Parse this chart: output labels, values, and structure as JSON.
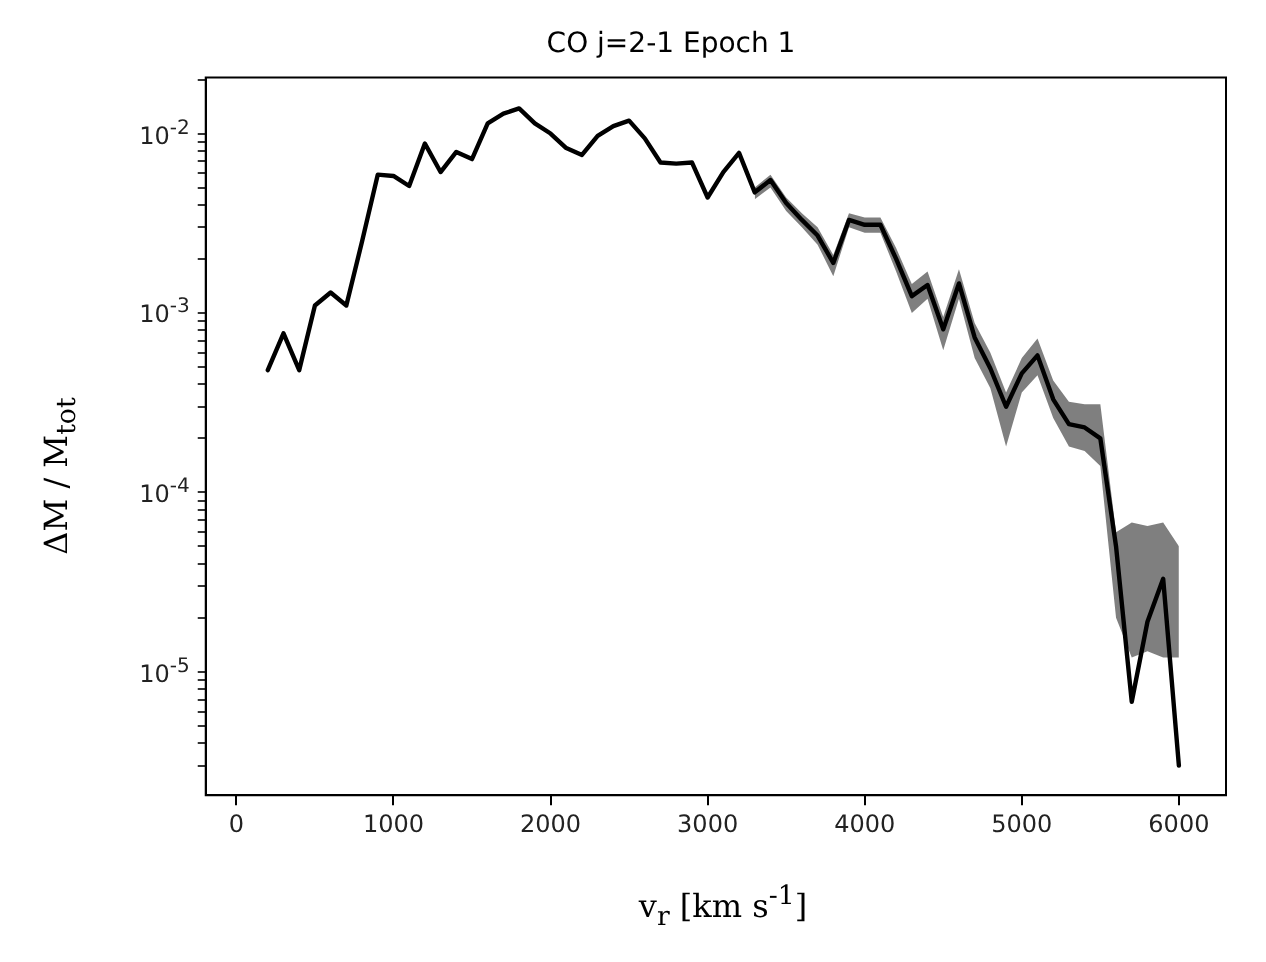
{
  "chart_data": {
    "type": "line",
    "title": "CO j=2-1 Epoch 1",
    "xlabel": "v$_{r}$ [km s$^{-1}$]",
    "ylabel": "ΔM / M$_{tot}$",
    "x": [
      200,
      300,
      400,
      500,
      600,
      700,
      800,
      900,
      1000,
      1100,
      1200,
      1300,
      1400,
      1500,
      1600,
      1700,
      1800,
      1900,
      2000,
      2100,
      2200,
      2300,
      2400,
      2500,
      2600,
      2700,
      2800,
      2900,
      3000,
      3100,
      3200,
      3300,
      3400,
      3500,
      3600,
      3700,
      3800,
      3900,
      4000,
      4100,
      4200,
      4300,
      4400,
      4500,
      4600,
      4700,
      4800,
      4900,
      5000,
      5100,
      5200,
      5300,
      5400,
      5500,
      5600,
      5700,
      5800,
      5900,
      6000
    ],
    "series": [
      {
        "color": "#000000",
        "values": [
          0.00048,
          0.00077,
          0.00048,
          0.0011,
          0.0013,
          0.0011,
          0.0025,
          0.0059,
          0.0058,
          0.0051,
          0.0088,
          0.0061,
          0.0079,
          0.0072,
          0.0114,
          0.0129,
          0.0138,
          0.0114,
          0.01,
          0.0083,
          0.0076,
          0.0097,
          0.011,
          0.0118,
          0.0094,
          0.0069,
          0.0068,
          0.0069,
          0.0044,
          0.0061,
          0.0078,
          0.0047,
          0.0055,
          0.0041,
          0.0033,
          0.0027,
          0.0019,
          0.0033,
          0.0031,
          0.0031,
          0.002,
          0.00124,
          0.00143,
          0.00081,
          0.00146,
          0.00073,
          0.00049,
          0.0003,
          0.00046,
          0.00058,
          0.00033,
          0.00024,
          0.00023,
          0.0002,
          5e-05,
          6.8e-06,
          1.9e-05,
          3.3e-05,
          3e-06
        ],
        "lower": [
          null,
          null,
          null,
          null,
          null,
          null,
          null,
          null,
          null,
          null,
          null,
          null,
          null,
          null,
          null,
          null,
          null,
          null,
          null,
          null,
          null,
          null,
          null,
          null,
          null,
          null,
          null,
          null,
          null,
          null,
          null,
          0.0043,
          0.005,
          0.0037,
          0.003,
          0.0024,
          0.0016,
          0.003,
          0.0028,
          0.0028,
          0.0017,
          0.001,
          0.0012,
          0.00062,
          0.0012,
          0.00056,
          0.00038,
          0.00018,
          0.00036,
          0.00045,
          0.00026,
          0.00018,
          0.00017,
          0.00014,
          2e-05,
          1.2e-05,
          1.3e-05,
          1.2e-05,
          1.2e-05
        ],
        "upper": [
          null,
          null,
          null,
          null,
          null,
          null,
          null,
          null,
          null,
          null,
          null,
          null,
          null,
          null,
          null,
          null,
          null,
          null,
          null,
          null,
          null,
          null,
          null,
          null,
          null,
          null,
          null,
          null,
          null,
          null,
          null,
          0.005,
          0.0059,
          0.0044,
          0.0036,
          0.003,
          0.0021,
          0.0036,
          0.0034,
          0.0034,
          0.0023,
          0.00145,
          0.0017,
          0.00095,
          0.00175,
          0.00088,
          0.0006,
          0.00036,
          0.00056,
          0.00072,
          0.00042,
          0.00032,
          0.00031,
          0.00031,
          6e-05,
          6.8e-05,
          6.5e-05,
          6.8e-05,
          5e-05
        ]
      }
    ],
    "xlim": [
      -195,
      6300
    ],
    "xticks": [
      0,
      1000,
      2000,
      3000,
      4000,
      5000,
      6000
    ],
    "ylim": [
      2.05e-06,
      0.0205
    ],
    "log": "y",
    "yticks": [
      {
        "value": 3e-06,
        "label": null
      },
      {
        "value": 4e-06,
        "label": null
      },
      {
        "value": 5e-06,
        "label": null
      },
      {
        "value": 6e-06,
        "label": null
      },
      {
        "value": 7e-06,
        "label": null
      },
      {
        "value": 8e-06,
        "label": null
      },
      {
        "value": 9e-06,
        "label": null
      },
      {
        "value": 1e-05,
        "label": "10$^{-5}$"
      },
      {
        "value": 2e-05,
        "label": null
      },
      {
        "value": 3e-05,
        "label": null
      },
      {
        "value": 4e-05,
        "label": null
      },
      {
        "value": 5e-05,
        "label": null
      },
      {
        "value": 6e-05,
        "label": null
      },
      {
        "value": 7e-05,
        "label": null
      },
      {
        "value": 8e-05,
        "label": null
      },
      {
        "value": 9e-05,
        "label": null
      },
      {
        "value": 0.0001,
        "label": "10$^{-4}$"
      },
      {
        "value": 0.0002,
        "label": null
      },
      {
        "value": 0.0003,
        "label": null
      },
      {
        "value": 0.0004,
        "label": null
      },
      {
        "value": 0.0005,
        "label": null
      },
      {
        "value": 0.0006,
        "label": null
      },
      {
        "value": 0.0007,
        "label": null
      },
      {
        "value": 0.0008,
        "label": null
      },
      {
        "value": 0.0009,
        "label": null
      },
      {
        "value": 0.001,
        "label": "10$^{-3}$"
      },
      {
        "value": 0.002,
        "label": null
      },
      {
        "value": 0.003,
        "label": null
      },
      {
        "value": 0.004,
        "label": null
      },
      {
        "value": 0.005,
        "label": null
      },
      {
        "value": 0.006,
        "label": null
      },
      {
        "value": 0.007,
        "label": null
      },
      {
        "value": 0.008,
        "label": null
      },
      {
        "value": 0.009,
        "label": null
      },
      {
        "value": 0.01,
        "label": "10$^{-2}$"
      },
      {
        "value": 0.02,
        "label": null
      }
    ],
    "grid": false,
    "legend": false,
    "line_style": "solid",
    "marker": "none"
  }
}
